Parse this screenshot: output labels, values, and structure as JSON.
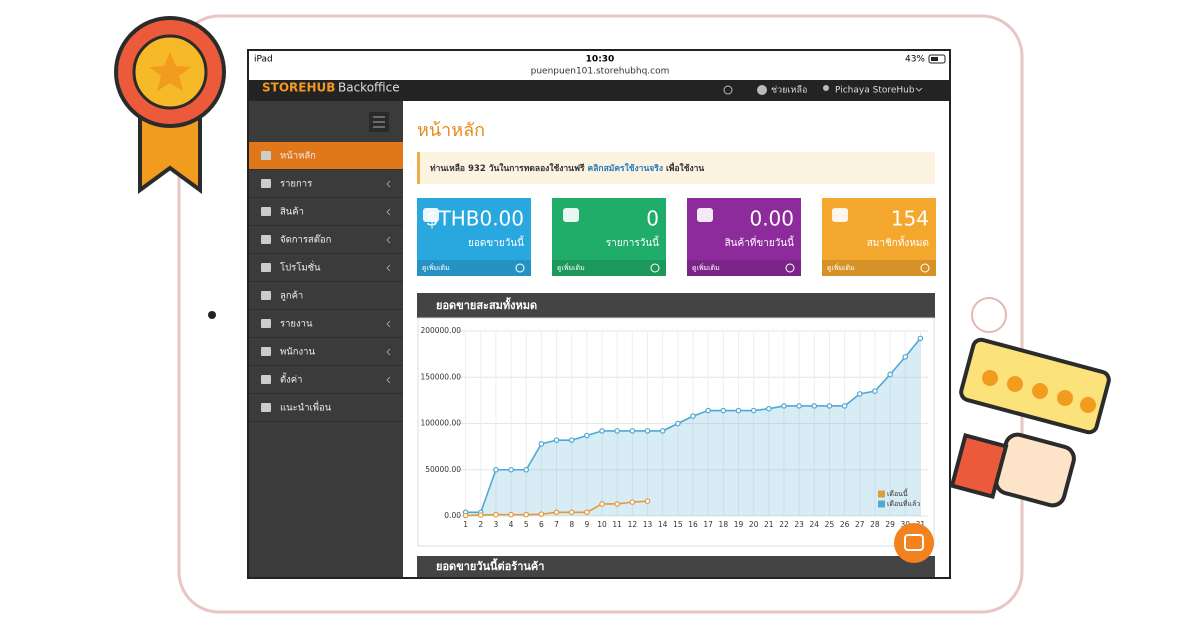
{
  "status_bar": {
    "device": "iPad",
    "time": "10:30",
    "battery": "43%",
    "url": "puenpuen101.storehubhq.com"
  },
  "nav": {
    "brand": "STOREHUB",
    "product": "Backoffice",
    "help": "ช่วยเหลือ",
    "user": "Pichaya StoreHub"
  },
  "sidebar": {
    "items": [
      {
        "label": "หน้าหลัก",
        "active": true,
        "submenu": false
      },
      {
        "label": "รายการ",
        "active": false,
        "submenu": true
      },
      {
        "label": "สินค้า",
        "active": false,
        "submenu": true
      },
      {
        "label": "จัดการสต๊อก",
        "active": false,
        "submenu": true
      },
      {
        "label": "โปรโมชั่น",
        "active": false,
        "submenu": true
      },
      {
        "label": "ลูกค้า",
        "active": false,
        "submenu": false
      },
      {
        "label": "รายงาน",
        "active": false,
        "submenu": true
      },
      {
        "label": "พนักงาน",
        "active": false,
        "submenu": true
      },
      {
        "label": "ตั้งค่า",
        "active": false,
        "submenu": true
      },
      {
        "label": "แนะนำเพื่อน",
        "active": false,
        "submenu": false
      }
    ]
  },
  "page_title": "หน้าหลัก",
  "notice": {
    "prefix": "ท่านเหลือ",
    "days": "932",
    "middle": "วันในการทดลองใช้งานฟรี",
    "link": "คลิกสมัครใช้งานจริง",
    "suffix": "เพื่อใช้งาน"
  },
  "cards": [
    {
      "value": "$THB0.00",
      "label": "ยอดขายวันนี้",
      "more": "ดูเพิ่มเติม",
      "color": "#29a8e0"
    },
    {
      "value": "0",
      "label": "รายการวันนี้",
      "more": "ดูเพิ่มเติม",
      "color": "#20ad6a"
    },
    {
      "value": "0.00",
      "label": "สินค้าที่ขายวันนี้",
      "more": "ดูเพิ่มเติม",
      "color": "#8e2b9c"
    },
    {
      "value": "154",
      "label": "สมาชิกทั้งหมด",
      "more": "ดูเพิ่มเติม",
      "color": "#f4a72d"
    }
  ],
  "panels": [
    "ยอดขายสะสมทั้งหมด",
    "ยอดขายวันนี้ต่อร้านค้า"
  ],
  "chart_data": {
    "type": "line",
    "categories": [
      "1",
      "2",
      "3",
      "4",
      "5",
      "6",
      "7",
      "8",
      "9",
      "10",
      "11",
      "12",
      "13",
      "14",
      "15",
      "16",
      "17",
      "18",
      "19",
      "20",
      "21",
      "22",
      "23",
      "24",
      "25",
      "26",
      "27",
      "28",
      "29",
      "30",
      "31"
    ],
    "series": [
      {
        "name": "เดือนนี้",
        "color": "#e29a3c",
        "area": false,
        "values": [
          500,
          1000,
          1500,
          1500,
          1500,
          2000,
          4000,
          4000,
          4000,
          13000,
          13000,
          15000,
          16000,
          null,
          null,
          null,
          null,
          null,
          null,
          null,
          null,
          null,
          null,
          null,
          null,
          null,
          null,
          null,
          null,
          null,
          null
        ]
      },
      {
        "name": "เดือนที่แล้ว",
        "color": "#4fa9d3",
        "area": true,
        "values": [
          4000,
          4000,
          50000,
          50000,
          50000,
          78000,
          82000,
          82000,
          87000,
          92000,
          92000,
          92000,
          92000,
          92000,
          100000,
          108000,
          114000,
          114000,
          114000,
          114000,
          116000,
          119000,
          119000,
          119000,
          119000,
          119000,
          132000,
          135000,
          153000,
          172000,
          192000
        ]
      }
    ],
    "ylim": [
      0,
      200000
    ],
    "yticks": [
      {
        "value": 0,
        "label": "0.00"
      },
      {
        "value": 50000,
        "label": "50000.00"
      },
      {
        "value": 100000,
        "label": "100000.00"
      },
      {
        "value": 150000,
        "label": "150000.00"
      },
      {
        "value": 200000,
        "label": "200000.00"
      }
    ],
    "grid": true,
    "legend": "lower right"
  }
}
